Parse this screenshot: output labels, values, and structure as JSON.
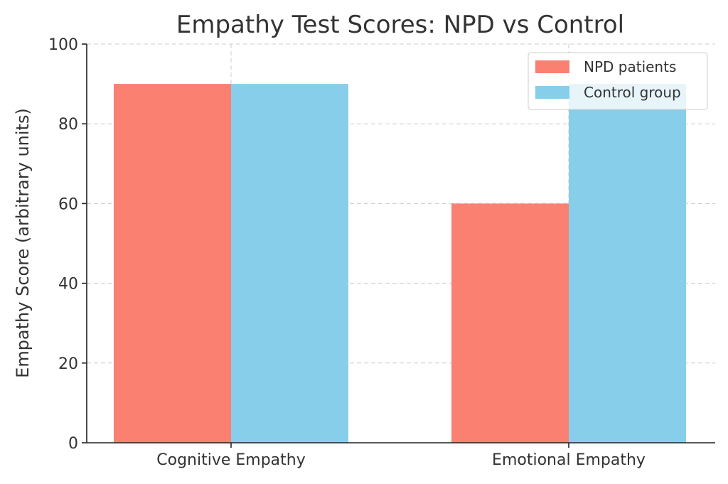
{
  "chart_data": {
    "type": "bar",
    "title": "Empathy Test Scores: NPD vs Control",
    "xlabel": "",
    "ylabel": "Empathy Score (arbitrary units)",
    "categories": [
      "Cognitive Empathy",
      "Emotional Empathy"
    ],
    "series": [
      {
        "name": "NPD patients",
        "values": [
          90,
          60
        ],
        "color": "#FA8072"
      },
      {
        "name": "Control group",
        "values": [
          90,
          90
        ],
        "color": "#87CEEB"
      }
    ],
    "ylim": [
      0,
      100
    ],
    "yticks": [
      0,
      20,
      40,
      60,
      80,
      100
    ],
    "grid": true,
    "legend_position": "top-right"
  }
}
